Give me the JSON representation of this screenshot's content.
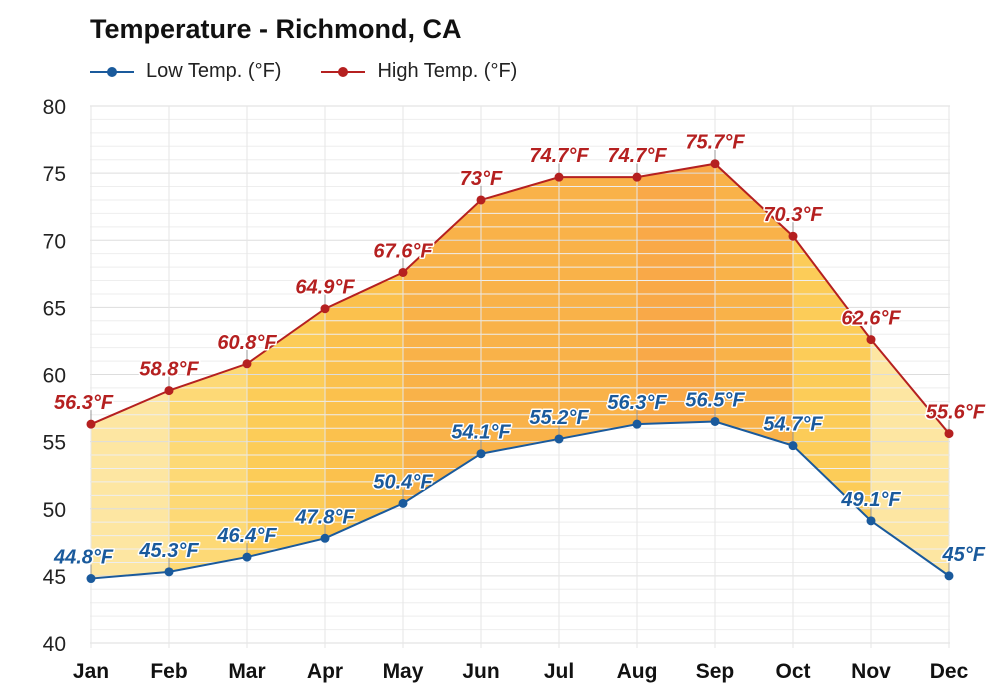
{
  "chart_data": {
    "type": "line",
    "title": "Temperature - Richmond, CA",
    "categories": [
      "Jan",
      "Feb",
      "Mar",
      "Apr",
      "May",
      "Jun",
      "Jul",
      "Aug",
      "Sep",
      "Oct",
      "Nov",
      "Dec"
    ],
    "ylim": [
      40,
      80
    ],
    "yticks": [
      40,
      45,
      50,
      55,
      60,
      65,
      70,
      75,
      80
    ],
    "grid": true,
    "legend_position": "top-left",
    "series": [
      {
        "name": "Low Temp. (°F)",
        "color": "#1a5a9c",
        "values": [
          44.8,
          45.3,
          46.4,
          47.8,
          50.4,
          54.1,
          55.2,
          56.3,
          56.5,
          54.7,
          49.1,
          45
        ],
        "labels": [
          "44.8°F",
          "45.3°F",
          "46.4°F",
          "47.8°F",
          "50.4°F",
          "54.1°F",
          "55.2°F",
          "56.3°F",
          "56.5°F",
          "54.7°F",
          "49.1°F",
          "45°F"
        ]
      },
      {
        "name": "High Temp. (°F)",
        "color": "#b52020",
        "values": [
          56.3,
          58.8,
          60.8,
          64.9,
          67.6,
          73,
          74.7,
          74.7,
          75.7,
          70.3,
          62.6,
          55.6
        ],
        "labels": [
          "56.3°F",
          "58.8°F",
          "60.8°F",
          "64.9°F",
          "67.6°F",
          "73°F",
          "74.7°F",
          "74.7°F",
          "75.7°F",
          "70.3°F",
          "62.6°F",
          "55.6°F"
        ]
      }
    ],
    "fill_colors": [
      "#fde49a",
      "#fdd66a",
      "#fcc84a",
      "#fbbc3e",
      "#f9ab3a",
      "#f9ab3a",
      "#f9ab3a",
      "#f8a238",
      "#f9ab3a",
      "#fcc84a",
      "#fde49a"
    ]
  }
}
